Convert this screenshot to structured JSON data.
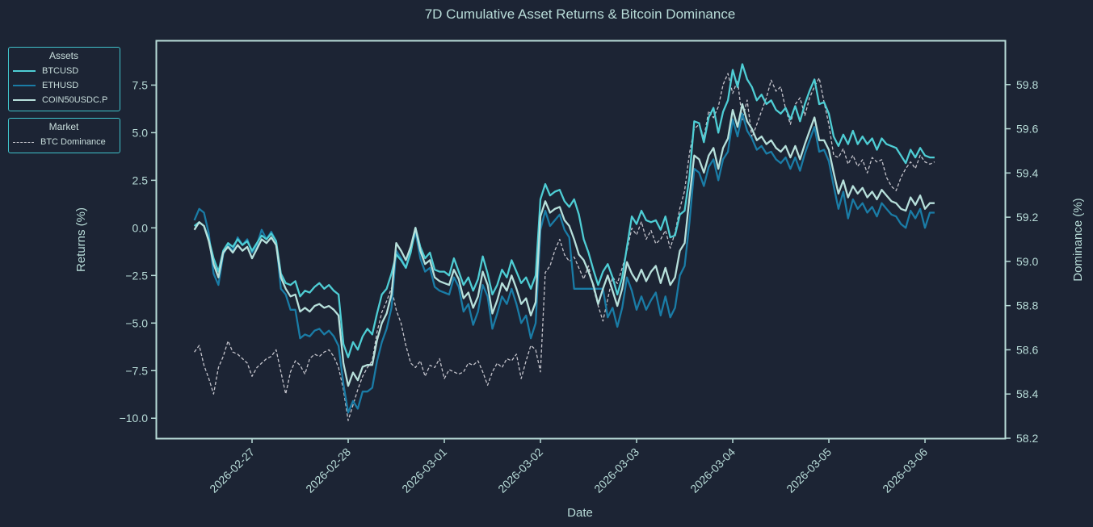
{
  "chart_data": {
    "type": "line",
    "title": "7D Cumulative Asset Returns & Bitcoin Dominance",
    "xlabel": "Date",
    "ylabel": "Returns (%)",
    "y2label": "Dominance (%)",
    "x_ticks": [
      "2026-02-27",
      "2026-02-28",
      "2026-03-01",
      "2026-03-02",
      "2026-03-03",
      "2026-03-04",
      "2026-03-05",
      "2026-03-06"
    ],
    "x_tick_offsets_days": [
      1,
      2,
      3,
      4,
      5,
      6,
      7,
      8
    ],
    "x_origin": "2026-02-26 00:00",
    "xlim_days": [
      0,
      8.84
    ],
    "ylim": [
      -11.05,
      9.85
    ],
    "y_ticks": [
      "7.5",
      "5.0",
      "2.5",
      "0.0",
      "-2.5",
      "-5.0",
      "-7.5",
      "-10.0"
    ],
    "y_tick_values": [
      7.5,
      5.0,
      2.5,
      0.0,
      -2.5,
      -5.0,
      -7.5,
      -10.0
    ],
    "y2lim": [
      58.2,
      60.0
    ],
    "y2_ticks": [
      "59.8",
      "59.6",
      "59.4",
      "59.2",
      "59.0",
      "58.8",
      "58.6",
      "58.4",
      "58.2"
    ],
    "y2_tick_values": [
      59.8,
      59.6,
      59.4,
      59.2,
      59.0,
      58.8,
      58.6,
      58.4,
      58.2
    ],
    "grid": false,
    "x_days": [
      0.4,
      0.45,
      0.5,
      0.55,
      0.6,
      0.65,
      0.7,
      0.75,
      0.8,
      0.85,
      0.9,
      0.95,
      1.0,
      1.05,
      1.1,
      1.15,
      1.2,
      1.25,
      1.3,
      1.35,
      1.4,
      1.45,
      1.5,
      1.55,
      1.6,
      1.65,
      1.7,
      1.75,
      1.8,
      1.85,
      1.9,
      1.95,
      2.0,
      2.05,
      2.1,
      2.15,
      2.2,
      2.25,
      2.3,
      2.35,
      2.4,
      2.45,
      2.5,
      2.55,
      2.6,
      2.65,
      2.7,
      2.75,
      2.8,
      2.85,
      2.9,
      2.95,
      3.0,
      3.05,
      3.1,
      3.15,
      3.2,
      3.25,
      3.3,
      3.35,
      3.4,
      3.45,
      3.5,
      3.55,
      3.6,
      3.65,
      3.7,
      3.75,
      3.8,
      3.85,
      3.9,
      3.95,
      4.0,
      4.05,
      4.1,
      4.15,
      4.2,
      4.25,
      4.3,
      4.35,
      4.4,
      4.45,
      4.5,
      4.55,
      4.6,
      4.65,
      4.7,
      4.75,
      4.8,
      4.85,
      4.9,
      4.95,
      5.0,
      5.05,
      5.1,
      5.15,
      5.2,
      5.25,
      5.3,
      5.35,
      5.4,
      5.45,
      5.5,
      5.55,
      5.6,
      5.65,
      5.7,
      5.75,
      5.8,
      5.85,
      5.9,
      5.95,
      6.0,
      6.05,
      6.1,
      6.15,
      6.2,
      6.25,
      6.3,
      6.35,
      6.4,
      6.45,
      6.5,
      6.55,
      6.6,
      6.65,
      6.7,
      6.75,
      6.8,
      6.85,
      6.9,
      6.95,
      7.0,
      7.05,
      7.1,
      7.15,
      7.2,
      7.25,
      7.3,
      7.35,
      7.4,
      7.45,
      7.5,
      7.55,
      7.6,
      7.65,
      7.7,
      7.75,
      7.8,
      7.85,
      7.9,
      7.95,
      8.0,
      8.05,
      8.1,
      8.15,
      8.2,
      8.25,
      8.3,
      8.35,
      8.4
    ],
    "series": [
      {
        "name": "BTCUSD",
        "axis": "left",
        "color": "#4ecdd4",
        "values": [
          0.1,
          0.3,
          0.1,
          -0.6,
          -1.6,
          -2.3,
          -1.2,
          -0.8,
          -1.0,
          -0.6,
          -0.9,
          -0.7,
          -1.2,
          -0.8,
          -0.4,
          -0.6,
          -0.3,
          -0.7,
          -2.4,
          -2.9,
          -3.0,
          -2.8,
          -3.6,
          -3.3,
          -3.4,
          -3.1,
          -2.9,
          -3.2,
          -3.0,
          -3.3,
          -3.5,
          -6.1,
          -6.8,
          -6.0,
          -6.4,
          -5.7,
          -5.3,
          -5.6,
          -4.5,
          -3.5,
          -3.2,
          -2.4,
          -1.4,
          -1.7,
          -2.1,
          -1.3,
          0.0,
          -1.0,
          -1.6,
          -1.3,
          -2.2,
          -2.3,
          -2.3,
          -2.5,
          -1.6,
          -2.3,
          -3.0,
          -2.6,
          -3.3,
          -2.7,
          -1.5,
          -2.4,
          -3.5,
          -3.0,
          -2.2,
          -2.6,
          -1.7,
          -2.3,
          -2.9,
          -2.6,
          -3.2,
          -2.5,
          1.5,
          2.3,
          1.7,
          1.9,
          2.0,
          1.4,
          1.1,
          1.5,
          0.7,
          -0.6,
          -1.3,
          -2.2,
          -3.0,
          -2.3,
          -1.9,
          -2.6,
          -3.5,
          -2.6,
          -1.0,
          0.6,
          0.2,
          0.9,
          0.4,
          0.3,
          0.4,
          -0.1,
          0.6,
          -0.5,
          -0.4,
          0.7,
          0.9,
          2.7,
          5.6,
          5.5,
          4.5,
          5.8,
          6.3,
          5.0,
          6.1,
          6.7,
          8.3,
          7.4,
          8.6,
          7.8,
          7.4,
          6.7,
          7.0,
          6.5,
          6.7,
          6.2,
          6.0,
          6.3,
          5.7,
          6.4,
          5.6,
          6.5,
          7.2,
          7.8,
          6.5,
          6.6,
          6.0,
          4.8,
          4.3,
          4.9,
          4.4,
          5.1,
          4.4,
          4.8,
          4.4,
          4.7,
          4.1,
          4.7,
          4.4,
          4.3,
          4.2,
          3.8,
          3.4,
          4.1,
          3.7,
          4.2,
          3.8,
          3.7,
          3.7
        ]
      },
      {
        "name": "ETHUSD",
        "axis": "left",
        "color": "#1a7ca6",
        "values": [
          0.4,
          1.0,
          0.8,
          -0.3,
          -2.4,
          -3.0,
          -1.4,
          -0.9,
          -1.2,
          -0.5,
          -0.9,
          -0.6,
          -1.3,
          -0.9,
          -0.1,
          -0.6,
          -0.2,
          -0.7,
          -3.2,
          -3.5,
          -4.3,
          -4.3,
          -5.8,
          -5.6,
          -5.7,
          -5.4,
          -5.3,
          -5.6,
          -5.4,
          -5.7,
          -6.2,
          -8.2,
          -9.7,
          -9.1,
          -9.5,
          -8.6,
          -8.6,
          -8.4,
          -7.0,
          -6.0,
          -5.3,
          -4.2,
          -1.2,
          -1.6,
          -2.1,
          -1.2,
          -0.2,
          -1.6,
          -2.3,
          -2.1,
          -3.1,
          -3.3,
          -3.4,
          -3.5,
          -2.6,
          -3.1,
          -4.4,
          -4.0,
          -5.1,
          -4.4,
          -3.0,
          -3.6,
          -5.3,
          -4.5,
          -3.6,
          -4.0,
          -3.2,
          -4.0,
          -5.0,
          -4.6,
          -5.8,
          -5.0,
          -0.1,
          0.9,
          0.1,
          0.4,
          0.7,
          -0.1,
          -0.5,
          -3.2,
          -3.2,
          -3.2,
          -3.2,
          -3.2,
          -3.2,
          -3.2,
          -4.7,
          -4.2,
          -5.2,
          -4.2,
          -2.6,
          -3.3,
          -4.3,
          -3.6,
          -4.3,
          -3.8,
          -3.4,
          -4.6,
          -3.6,
          -4.7,
          -4.2,
          -2.5,
          -2.0,
          0.3,
          3.1,
          2.9,
          2.2,
          3.2,
          3.6,
          2.5,
          3.6,
          4.0,
          5.7,
          4.8,
          6.0,
          5.1,
          4.7,
          4.1,
          4.3,
          3.9,
          4.0,
          3.6,
          3.4,
          3.7,
          3.1,
          3.7,
          3.0,
          3.9,
          4.6,
          5.3,
          4.0,
          4.1,
          3.5,
          2.2,
          1.0,
          1.9,
          0.5,
          1.5,
          1.0,
          1.3,
          0.8,
          1.1,
          0.6,
          1.3,
          1.0,
          0.7,
          0.6,
          0.2,
          0.0,
          0.9,
          0.5,
          1.0,
          0.0,
          0.8,
          0.8
        ]
      },
      {
        "name": "COIN50USDC.P",
        "axis": "left",
        "color": "#b7e0db",
        "values": [
          -0.1,
          0.3,
          0.1,
          -0.7,
          -1.9,
          -2.6,
          -1.3,
          -1.0,
          -1.3,
          -0.9,
          -1.2,
          -1.0,
          -1.6,
          -1.1,
          -0.6,
          -0.8,
          -0.5,
          -0.9,
          -2.6,
          -3.2,
          -3.6,
          -3.5,
          -4.4,
          -4.2,
          -4.4,
          -4.1,
          -4.0,
          -4.2,
          -4.1,
          -4.3,
          -4.6,
          -7.1,
          -8.3,
          -7.6,
          -8.0,
          -7.3,
          -7.2,
          -7.2,
          -5.9,
          -5.0,
          -4.5,
          -3.5,
          -0.8,
          -1.2,
          -1.7,
          -1.0,
          0.0,
          -1.2,
          -1.9,
          -1.7,
          -2.6,
          -2.8,
          -2.9,
          -3.0,
          -2.2,
          -2.7,
          -3.7,
          -3.4,
          -4.2,
          -3.6,
          -2.3,
          -3.0,
          -4.5,
          -3.8,
          -2.9,
          -3.3,
          -2.5,
          -3.2,
          -4.0,
          -3.7,
          -4.6,
          -3.9,
          0.6,
          1.4,
          0.8,
          1.0,
          1.1,
          0.4,
          0.1,
          -0.6,
          -1.4,
          -1.7,
          -2.3,
          -3.0,
          -4.0,
          -3.2,
          -2.5,
          -3.3,
          -4.1,
          -3.2,
          -1.8,
          -2.4,
          -2.8,
          -2.2,
          -2.8,
          -2.3,
          -2.0,
          -2.9,
          -2.1,
          -3.0,
          -2.6,
          -1.2,
          -0.8,
          1.6,
          3.8,
          3.6,
          2.9,
          3.8,
          4.2,
          3.1,
          4.2,
          4.7,
          6.2,
          5.3,
          6.5,
          5.6,
          5.2,
          4.6,
          4.8,
          4.4,
          4.6,
          4.2,
          4.0,
          4.3,
          3.7,
          4.3,
          3.6,
          4.4,
          5.1,
          5.8,
          4.6,
          4.6,
          4.1,
          2.9,
          1.8,
          2.5,
          1.6,
          2.2,
          1.8,
          2.1,
          1.6,
          1.9,
          1.5,
          2.0,
          1.7,
          1.4,
          1.3,
          1.0,
          0.9,
          1.6,
          1.2,
          1.7,
          1.0,
          1.3,
          1.3
        ]
      },
      {
        "name": "BTC Dominance",
        "axis": "right",
        "color": "#c4c4cc",
        "dashed": true,
        "values": [
          58.59,
          58.62,
          58.53,
          58.47,
          58.4,
          58.52,
          58.57,
          58.64,
          58.59,
          58.58,
          58.56,
          58.54,
          58.48,
          58.52,
          58.54,
          58.56,
          58.57,
          58.6,
          58.5,
          58.4,
          58.5,
          58.55,
          58.53,
          58.49,
          58.56,
          58.58,
          58.57,
          58.59,
          58.6,
          58.57,
          58.52,
          58.42,
          58.28,
          58.35,
          58.42,
          58.48,
          58.52,
          58.55,
          58.68,
          58.77,
          58.82,
          58.88,
          58.78,
          58.72,
          58.62,
          58.54,
          58.52,
          58.55,
          58.48,
          58.53,
          58.52,
          58.56,
          58.47,
          58.51,
          58.5,
          58.49,
          58.5,
          58.54,
          58.53,
          58.55,
          58.5,
          58.44,
          58.5,
          58.54,
          58.52,
          58.56,
          58.55,
          58.58,
          58.47,
          58.55,
          58.62,
          58.6,
          58.5,
          58.95,
          58.98,
          59.05,
          59.1,
          59.03,
          59.0,
          59.02,
          58.97,
          58.92,
          58.98,
          58.88,
          58.8,
          58.73,
          58.83,
          58.93,
          58.9,
          58.97,
          59.05,
          59.15,
          59.12,
          59.18,
          59.1,
          59.14,
          59.08,
          59.1,
          59.14,
          59.06,
          59.13,
          59.24,
          59.32,
          59.49,
          59.6,
          59.62,
          59.56,
          59.68,
          59.65,
          59.7,
          59.8,
          59.85,
          59.76,
          59.82,
          59.64,
          59.73,
          59.56,
          59.62,
          59.68,
          59.74,
          59.82,
          59.77,
          59.79,
          59.69,
          59.62,
          59.71,
          59.74,
          59.66,
          59.74,
          59.79,
          59.83,
          59.72,
          59.62,
          59.48,
          59.47,
          59.51,
          59.44,
          59.48,
          59.43,
          59.46,
          59.4,
          59.47,
          59.45,
          59.46,
          59.38,
          59.34,
          59.32,
          59.38,
          59.42,
          59.45,
          59.42,
          59.48,
          59.45,
          59.44,
          59.45
        ]
      }
    ],
    "legends": [
      {
        "title": "Assets",
        "entries": [
          "BTCUSD",
          "ETHUSD",
          "COIN50USDC.P"
        ]
      },
      {
        "title": "Market",
        "entries": [
          "BTC Dominance"
        ]
      }
    ],
    "legend_placement": "outside-top-left"
  },
  "colors": {
    "background": "#1c2434",
    "axis": "#b8dcd8",
    "text": "#b8dcd8",
    "legend_border": "#3fc1c9"
  }
}
